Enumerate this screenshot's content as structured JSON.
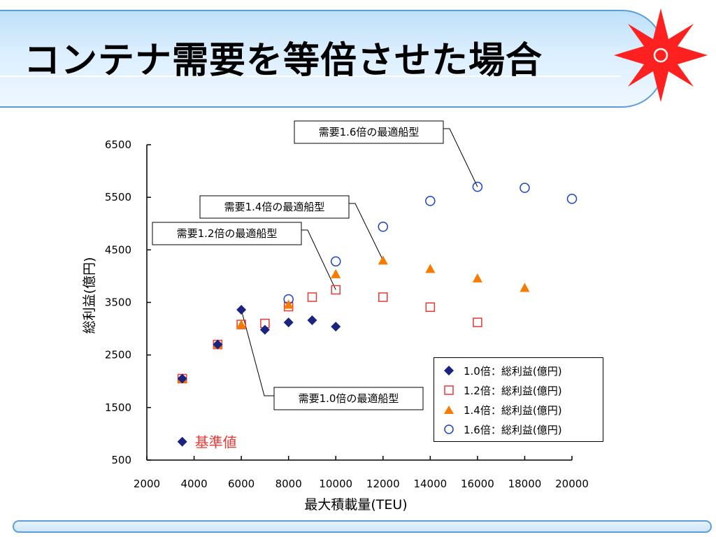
{
  "slide": {
    "title": "コンテナ需要を等倍させた場合"
  },
  "colors": {
    "accent_blue": "#5b9ed9",
    "logo_red": "#ff2020"
  },
  "chart_data": {
    "type": "scatter",
    "xlabel": "最大積載量(TEU)",
    "ylabel": "総利益(億円)",
    "xlim": [
      2000,
      20000
    ],
    "ylim": [
      500,
      6500
    ],
    "xticks": [
      "2000",
      "4000",
      "6000",
      "8000",
      "10000",
      "12000",
      "14000",
      "16000",
      "18000",
      "20000"
    ],
    "yticks": [
      "500",
      "1500",
      "2500",
      "3500",
      "4500",
      "5500",
      "6500"
    ],
    "series": [
      {
        "name": "1.0倍：総利益(億円)",
        "marker": "diamond",
        "color": "#1a237e",
        "points": [
          [
            3500,
            2050
          ],
          [
            5000,
            2700
          ],
          [
            6000,
            3360
          ],
          [
            7000,
            2980
          ],
          [
            8000,
            3120
          ],
          [
            9000,
            3160
          ],
          [
            10000,
            3040
          ]
        ]
      },
      {
        "name": "1.2倍：総利益(億円)",
        "marker": "square",
        "color": "#e53935",
        "points": [
          [
            3500,
            2050
          ],
          [
            5000,
            2700
          ],
          [
            6000,
            3080
          ],
          [
            7000,
            3100
          ],
          [
            8000,
            3420
          ],
          [
            9000,
            3600
          ],
          [
            10000,
            3740
          ],
          [
            12000,
            3600
          ],
          [
            14000,
            3410
          ],
          [
            16000,
            3120
          ]
        ]
      },
      {
        "name": "1.4倍：総利益(億円)",
        "marker": "triangle",
        "color": "#f57c00",
        "points": [
          [
            3500,
            2050
          ],
          [
            5000,
            2700
          ],
          [
            6000,
            3080
          ],
          [
            8000,
            3460
          ],
          [
            10000,
            4040
          ],
          [
            12000,
            4300
          ],
          [
            14000,
            4140
          ],
          [
            16000,
            3960
          ],
          [
            18000,
            3780
          ]
        ]
      },
      {
        "name": "1.6倍：総利益(億円)",
        "marker": "circle",
        "color": "#1e3fc8",
        "points": [
          [
            8000,
            3560
          ],
          [
            10000,
            4280
          ],
          [
            12000,
            4940
          ],
          [
            14000,
            5430
          ],
          [
            16000,
            5700
          ],
          [
            18000,
            5680
          ],
          [
            20000,
            5470
          ]
        ]
      }
    ],
    "baseline": {
      "label": "基準値",
      "marker": "diamond",
      "color": "#1a237e",
      "point": [
        3500,
        850
      ]
    },
    "annotations": [
      {
        "text": "需要1.6倍の最適船型",
        "target": [
          16000,
          5700
        ]
      },
      {
        "text": "需要1.4倍の最適船型",
        "target": [
          12000,
          4300
        ]
      },
      {
        "text": "需要1.2倍の最適船型",
        "target": [
          10000,
          3740
        ]
      },
      {
        "text": "需要1.0倍の最適船型",
        "target": [
          6000,
          3360
        ]
      }
    ],
    "legend_position": "bottom-right",
    "grid": false
  }
}
